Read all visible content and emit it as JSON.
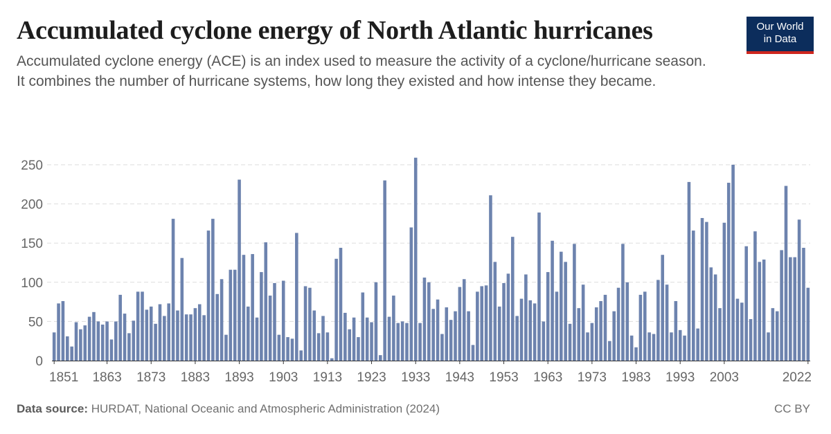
{
  "header": {
    "title": "Accumulated cyclone energy of North Atlantic hurricanes",
    "subtitle": "Accumulated cyclone energy (ACE) is an index used to measure the activity of a cyclone/hurricane season. It combines the number of hurricane systems, how long they existed and how intense they became."
  },
  "logo": {
    "line1": "Our World",
    "line2": "in Data"
  },
  "footer": {
    "source_label": "Data source:",
    "source_text": "HURDAT, National Oceanic and Atmospheric Administration (2024)",
    "license": "CC BY"
  },
  "colors": {
    "bar": "#6d83ae",
    "grid": "#dddddd",
    "axis": "#333333",
    "tick_text": "#666666"
  },
  "chart_data": {
    "type": "bar",
    "title": "Accumulated cyclone energy of North Atlantic hurricanes",
    "xlabel": "",
    "ylabel": "",
    "ylim": [
      0,
      260
    ],
    "yticks": [
      0,
      50,
      100,
      150,
      200,
      250
    ],
    "xtick_labels": [
      "1851",
      "1863",
      "1873",
      "1883",
      "1893",
      "1903",
      "1913",
      "1923",
      "1933",
      "1943",
      "1953",
      "1963",
      "1973",
      "1983",
      "1993",
      "2003",
      "2022"
    ],
    "grid": true,
    "legend": "none",
    "x_start": 1851,
    "x_end": 2022,
    "values": [
      36,
      73,
      76,
      31,
      18,
      49,
      40,
      45,
      56,
      62,
      50,
      46,
      50,
      27,
      50,
      84,
      60,
      35,
      51,
      88,
      88,
      65,
      69,
      47,
      72,
      57,
      73,
      181,
      64,
      131,
      59,
      59,
      67,
      72,
      58,
      166,
      181,
      85,
      104,
      33,
      116,
      116,
      231,
      135,
      69,
      136,
      55,
      113,
      151,
      83,
      99,
      33,
      102,
      30,
      28,
      163,
      13,
      95,
      93,
      64,
      35,
      57,
      36,
      3,
      130,
      144,
      61,
      40,
      55,
      30,
      87,
      55,
      49,
      100,
      7,
      230,
      56,
      83,
      48,
      50,
      48,
      170,
      259,
      48,
      106,
      100,
      66,
      78,
      34,
      68,
      52,
      63,
      94,
      104,
      63,
      20,
      88,
      95,
      96,
      211,
      126,
      69,
      99,
      111,
      158,
      57,
      79,
      110,
      77,
      73,
      189,
      50,
      113,
      153,
      88,
      139,
      126,
      47,
      149,
      67,
      97,
      36,
      48,
      68,
      76,
      84,
      25,
      63,
      93,
      149,
      100,
      32,
      17,
      84,
      88,
      36,
      34,
      103,
      135,
      97,
      36,
      76,
      39,
      32,
      228,
      166,
      41,
      182,
      177,
      119,
      110,
      67,
      176,
      227,
      250,
      79,
      74,
      146,
      53,
      165,
      126,
      129,
      36,
      67,
      63,
      141,
      223,
      132,
      132,
      180,
      144,
      93
    ]
  }
}
